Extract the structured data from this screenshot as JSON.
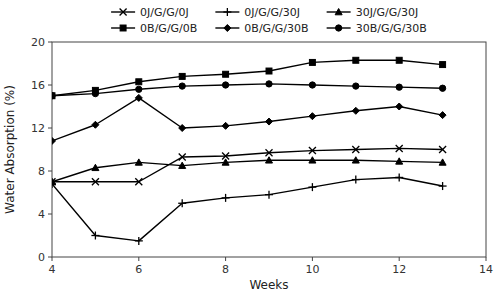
{
  "chart_data": {
    "type": "line",
    "xlabel": "Weeks",
    "ylabel": "Water Absorption (%)",
    "x": [
      4,
      5,
      6,
      7,
      8,
      9,
      10,
      11,
      12,
      13
    ],
    "xlim": [
      4,
      14
    ],
    "ylim": [
      0,
      20
    ],
    "xticks": [
      4,
      6,
      8,
      10,
      12,
      14
    ],
    "yticks": [
      0,
      4,
      8,
      12,
      16,
      20
    ],
    "grid": false,
    "legend": "top",
    "series": [
      {
        "name": "0J/G/G/0J",
        "color": "black",
        "marker": "x",
        "values": [
          7.0,
          7.0,
          7.0,
          9.3,
          9.4,
          9.7,
          9.9,
          10.0,
          10.1,
          10.0
        ]
      },
      {
        "name": "0J/G/G/30J",
        "color": "black",
        "marker": "plus",
        "values": [
          6.8,
          2.0,
          1.5,
          5.0,
          5.5,
          5.8,
          6.5,
          7.2,
          7.4,
          6.6
        ]
      },
      {
        "name": "30J/G/G/30J",
        "color": "black",
        "marker": "triangle",
        "values": [
          7.0,
          8.3,
          8.8,
          8.5,
          8.8,
          9.0,
          9.0,
          9.0,
          8.9,
          8.8
        ]
      },
      {
        "name": "0B/G/G/0B",
        "color": "black",
        "marker": "square",
        "values": [
          15.0,
          15.5,
          16.3,
          16.8,
          17.0,
          17.3,
          18.1,
          18.3,
          18.3,
          17.9
        ]
      },
      {
        "name": "0B/G/G/30B",
        "color": "black",
        "marker": "diamond",
        "values": [
          10.8,
          12.3,
          14.8,
          12.0,
          12.2,
          12.6,
          13.1,
          13.6,
          14.0,
          13.2
        ]
      },
      {
        "name": "30B/G/G/30B",
        "color": "black",
        "marker": "circle",
        "values": [
          15.0,
          15.2,
          15.6,
          15.9,
          16.0,
          16.1,
          16.0,
          15.9,
          15.8,
          15.7
        ]
      }
    ]
  }
}
